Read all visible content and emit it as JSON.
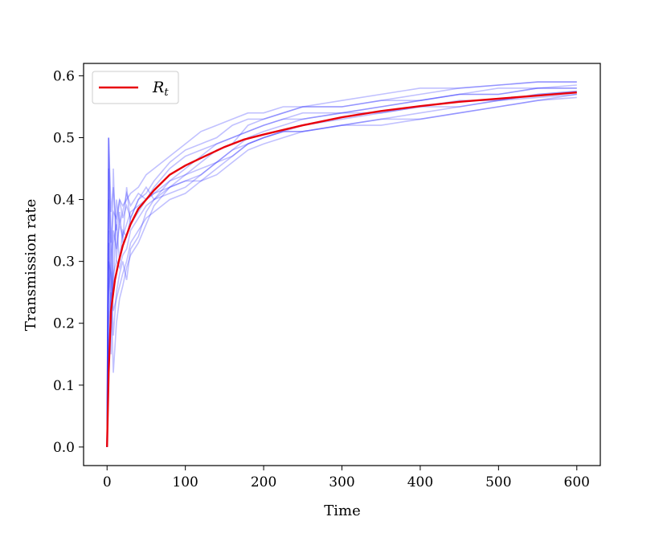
{
  "chart_data": {
    "type": "line",
    "title": "",
    "xlabel": "Time",
    "ylabel": "Transmission rate",
    "xlim": [
      -30,
      630
    ],
    "ylim": [
      -0.03,
      0.62
    ],
    "xticks": [
      0,
      100,
      200,
      300,
      400,
      500,
      600
    ],
    "yticks": [
      0.0,
      0.1,
      0.2,
      0.3,
      0.4,
      0.5,
      0.6
    ],
    "xtick_labels": [
      "0",
      "100",
      "200",
      "300",
      "400",
      "500",
      "600"
    ],
    "ytick_labels": [
      "0.0",
      "0.1",
      "0.2",
      "0.3",
      "0.4",
      "0.5",
      "0.6"
    ],
    "grid": false,
    "legend": {
      "placement": "top-left",
      "entries": [
        {
          "label": "R",
          "subscript": "t",
          "color": "#e8000b"
        }
      ]
    },
    "colors": {
      "mean": "#e8000b",
      "samples": "#3333ff"
    },
    "mean_curve": {
      "name": "R_t",
      "x": [
        0,
        2,
        5,
        10,
        15,
        20,
        30,
        40,
        50,
        60,
        80,
        100,
        125,
        150,
        175,
        200,
        250,
        300,
        350,
        400,
        450,
        500,
        550,
        600
      ],
      "y": [
        0.0,
        0.12,
        0.22,
        0.27,
        0.3,
        0.325,
        0.36,
        0.385,
        0.4,
        0.415,
        0.44,
        0.455,
        0.47,
        0.485,
        0.497,
        0.505,
        0.52,
        0.533,
        0.543,
        0.551,
        0.558,
        0.563,
        0.568,
        0.573
      ]
    },
    "sample_paths": [
      {
        "x": [
          0,
          2,
          5,
          8,
          12,
          16,
          20,
          25,
          30,
          40,
          50,
          60,
          80,
          100,
          120,
          140,
          160,
          180,
          200,
          225,
          250,
          300,
          350,
          400,
          450,
          500,
          550,
          600
        ],
        "y": [
          0,
          0.5,
          0.2,
          0.45,
          0.3,
          0.38,
          0.33,
          0.42,
          0.36,
          0.38,
          0.4,
          0.41,
          0.43,
          0.45,
          0.47,
          0.49,
          0.5,
          0.51,
          0.52,
          0.53,
          0.54,
          0.54,
          0.55,
          0.56,
          0.57,
          0.58,
          0.58,
          0.585
        ]
      },
      {
        "x": [
          0,
          2,
          5,
          8,
          12,
          16,
          20,
          25,
          30,
          40,
          50,
          60,
          80,
          100,
          120,
          140,
          160,
          180,
          200,
          225,
          250,
          300,
          350,
          400,
          450,
          500,
          550,
          600
        ],
        "y": [
          0,
          0.33,
          0.15,
          0.33,
          0.36,
          0.3,
          0.35,
          0.34,
          0.37,
          0.4,
          0.42,
          0.4,
          0.42,
          0.44,
          0.46,
          0.48,
          0.49,
          0.52,
          0.53,
          0.54,
          0.55,
          0.55,
          0.56,
          0.57,
          0.58,
          0.585,
          0.59,
          0.59
        ]
      },
      {
        "x": [
          0,
          2,
          5,
          8,
          12,
          16,
          20,
          25,
          30,
          40,
          50,
          60,
          80,
          100,
          120,
          140,
          160,
          180,
          200,
          225,
          250,
          300,
          350,
          400,
          450,
          500,
          550,
          600
        ],
        "y": [
          0,
          0.25,
          0.3,
          0.18,
          0.25,
          0.28,
          0.3,
          0.27,
          0.32,
          0.34,
          0.38,
          0.4,
          0.43,
          0.44,
          0.45,
          0.46,
          0.47,
          0.49,
          0.5,
          0.51,
          0.51,
          0.52,
          0.53,
          0.53,
          0.54,
          0.55,
          0.56,
          0.565
        ]
      },
      {
        "x": [
          0,
          2,
          5,
          8,
          12,
          16,
          20,
          25,
          30,
          40,
          50,
          60,
          80,
          100,
          120,
          140,
          160,
          180,
          200,
          225,
          250,
          300,
          350,
          400,
          450,
          500,
          550,
          600
        ],
        "y": [
          0,
          0.5,
          0.35,
          0.25,
          0.4,
          0.36,
          0.38,
          0.41,
          0.39,
          0.41,
          0.4,
          0.42,
          0.45,
          0.47,
          0.48,
          0.49,
          0.5,
          0.51,
          0.52,
          0.53,
          0.53,
          0.54,
          0.55,
          0.56,
          0.57,
          0.57,
          0.58,
          0.58
        ]
      },
      {
        "x": [
          0,
          2,
          5,
          8,
          12,
          16,
          20,
          25,
          30,
          40,
          50,
          60,
          80,
          100,
          120,
          140,
          160,
          180,
          200,
          225,
          250,
          300,
          350,
          400,
          450,
          500,
          550,
          600
        ],
        "y": [
          0,
          0.2,
          0.25,
          0.12,
          0.2,
          0.24,
          0.26,
          0.29,
          0.31,
          0.33,
          0.36,
          0.39,
          0.42,
          0.43,
          0.43,
          0.44,
          0.46,
          0.48,
          0.49,
          0.5,
          0.51,
          0.52,
          0.52,
          0.53,
          0.54,
          0.55,
          0.56,
          0.57
        ]
      },
      {
        "x": [
          0,
          2,
          5,
          8,
          12,
          16,
          20,
          25,
          30,
          40,
          50,
          60,
          80,
          100,
          120,
          140,
          160,
          180,
          200,
          225,
          250,
          300,
          350,
          400,
          450,
          500,
          550,
          600
        ],
        "y": [
          0,
          0.5,
          0.38,
          0.42,
          0.35,
          0.4,
          0.37,
          0.39,
          0.37,
          0.4,
          0.41,
          0.43,
          0.46,
          0.48,
          0.49,
          0.5,
          0.52,
          0.53,
          0.53,
          0.54,
          0.55,
          0.55,
          0.56,
          0.56,
          0.57,
          0.57,
          0.58,
          0.58
        ]
      },
      {
        "x": [
          0,
          2,
          5,
          8,
          12,
          16,
          20,
          25,
          30,
          40,
          50,
          60,
          80,
          100,
          120,
          140,
          160,
          180,
          200,
          225,
          250,
          300,
          350,
          400,
          450,
          500,
          550,
          600
        ],
        "y": [
          0,
          0.3,
          0.28,
          0.22,
          0.24,
          0.26,
          0.28,
          0.3,
          0.33,
          0.35,
          0.37,
          0.38,
          0.4,
          0.41,
          0.43,
          0.45,
          0.47,
          0.49,
          0.5,
          0.51,
          0.52,
          0.53,
          0.54,
          0.55,
          0.56,
          0.56,
          0.57,
          0.575
        ]
      },
      {
        "x": [
          0,
          2,
          5,
          8,
          12,
          16,
          20,
          25,
          30,
          40,
          50,
          60,
          80,
          100,
          120,
          140,
          160,
          180,
          200,
          225,
          250,
          300,
          350,
          400,
          450,
          500,
          550,
          600
        ],
        "y": [
          0,
          0.4,
          0.3,
          0.35,
          0.32,
          0.36,
          0.34,
          0.36,
          0.38,
          0.39,
          0.4,
          0.41,
          0.42,
          0.43,
          0.44,
          0.46,
          0.48,
          0.5,
          0.51,
          0.52,
          0.53,
          0.54,
          0.54,
          0.55,
          0.55,
          0.56,
          0.57,
          0.575
        ]
      },
      {
        "x": [
          0,
          2,
          5,
          8,
          12,
          16,
          20,
          25,
          30,
          40,
          50,
          60,
          80,
          100,
          120,
          140,
          160,
          180,
          200,
          225,
          250,
          300,
          350,
          400,
          450,
          500,
          550,
          600
        ],
        "y": [
          0,
          0.45,
          0.33,
          0.38,
          0.37,
          0.4,
          0.39,
          0.4,
          0.41,
          0.42,
          0.44,
          0.45,
          0.47,
          0.49,
          0.51,
          0.52,
          0.53,
          0.54,
          0.54,
          0.55,
          0.55,
          0.56,
          0.57,
          0.58,
          0.58,
          0.585,
          0.59,
          0.59
        ]
      },
      {
        "x": [
          0,
          2,
          5,
          8,
          12,
          16,
          20,
          25,
          30,
          40,
          50,
          60,
          80,
          100,
          120,
          140,
          160,
          180,
          200,
          225,
          250,
          300,
          350,
          400,
          450,
          500,
          550,
          600
        ],
        "y": [
          0,
          0.35,
          0.22,
          0.28,
          0.3,
          0.29,
          0.31,
          0.32,
          0.35,
          0.37,
          0.39,
          0.4,
          0.41,
          0.42,
          0.44,
          0.46,
          0.48,
          0.49,
          0.5,
          0.51,
          0.51,
          0.52,
          0.53,
          0.54,
          0.55,
          0.56,
          0.565,
          0.57
        ]
      }
    ]
  }
}
